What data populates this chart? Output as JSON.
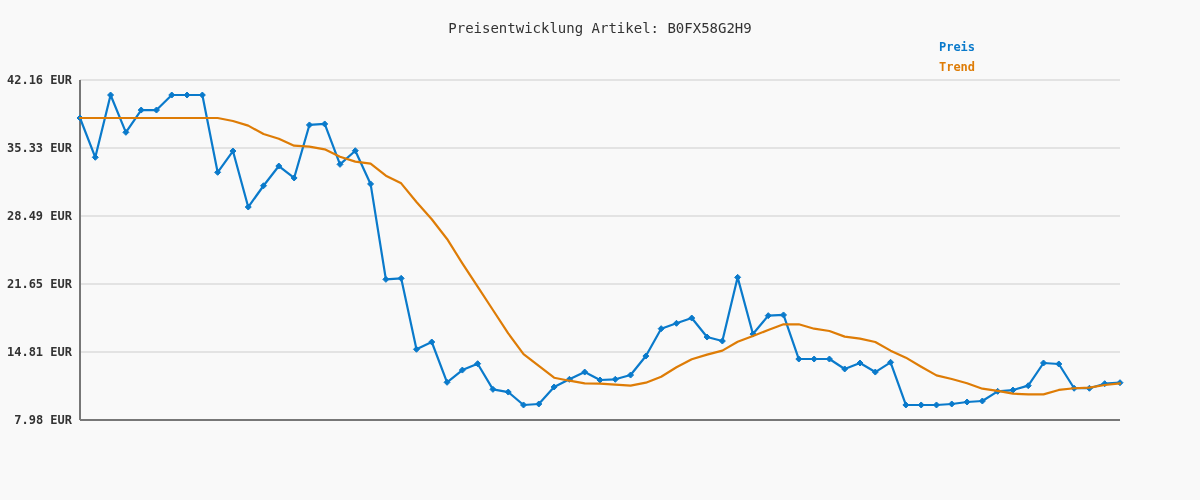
{
  "chart_data": {
    "type": "line",
    "title": "Preisentwicklung Artikel: B0FX58G2H9",
    "categories": [
      null,
      null,
      null,
      null,
      null,
      null,
      null,
      null,
      null,
      null,
      null,
      null,
      null,
      null,
      null,
      null,
      null,
      null,
      null,
      null,
      null,
      null,
      null,
      null,
      null,
      null,
      null,
      null,
      null,
      null,
      null,
      null,
      null,
      null,
      null,
      null,
      null,
      null,
      null,
      null,
      null,
      null,
      null,
      null,
      null,
      null,
      null,
      null,
      null,
      null,
      null,
      null,
      null,
      null,
      null,
      null,
      null,
      null,
      null,
      null,
      null,
      null,
      null,
      null,
      null,
      null,
      null,
      null,
      null
    ],
    "series": [
      {
        "name": "Preis",
        "color": "#0a7acb",
        "marker": "diamond",
        "values": [
          38.34,
          34.39,
          40.65,
          36.9,
          39.14,
          39.14,
          40.65,
          40.65,
          40.65,
          32.88,
          35.02,
          29.39,
          31.53,
          33.51,
          32.31,
          37.64,
          37.74,
          33.68,
          35.05,
          31.71,
          22.12,
          22.22,
          15.09,
          15.82,
          11.77,
          13.0,
          13.64,
          11.06,
          10.79,
          9.49,
          9.59,
          11.3,
          12.07,
          12.8,
          12.0,
          12.07,
          12.5,
          14.41,
          17.16,
          17.7,
          18.23,
          16.32,
          15.92,
          22.32,
          16.62,
          18.47,
          18.54,
          14.11,
          14.11,
          14.11,
          13.11,
          13.71,
          12.8,
          13.78,
          9.49,
          9.49,
          9.49,
          9.59,
          9.79,
          9.89,
          10.86,
          10.99,
          11.43,
          13.71,
          13.61,
          11.17,
          11.17,
          11.63,
          11.73
        ]
      },
      {
        "name": "Trend",
        "color": "#de7c06",
        "marker": "none",
        "values": [
          38.34,
          38.34,
          38.34,
          38.34,
          38.34,
          38.34,
          38.34,
          38.34,
          38.34,
          38.34,
          38.04,
          37.57,
          36.73,
          36.26,
          35.56,
          35.46,
          35.19,
          34.45,
          33.95,
          33.75,
          32.54,
          31.77,
          29.9,
          28.16,
          26.18,
          23.73,
          21.38,
          19.04,
          16.69,
          14.61,
          13.41,
          12.23,
          11.93,
          11.67,
          11.64,
          11.53,
          11.43,
          11.73,
          12.33,
          13.28,
          14.08,
          14.55,
          14.95,
          15.85,
          16.42,
          17.03,
          17.6,
          17.6,
          17.16,
          16.93,
          16.36,
          16.16,
          15.82,
          14.95,
          14.25,
          13.34,
          12.47,
          12.1,
          11.67,
          11.13,
          10.9,
          10.63,
          10.56,
          10.56,
          11.0,
          11.17,
          11.23,
          11.5,
          11.67
        ]
      }
    ],
    "ylim": [
      7.98,
      42.16
    ],
    "yticks": [
      {
        "value": 7.98,
        "label": "7.98 EUR"
      },
      {
        "value": 14.81,
        "label": "14.81 EUR"
      },
      {
        "value": 21.65,
        "label": "21.65 EUR"
      },
      {
        "value": 28.49,
        "label": "28.49 EUR"
      },
      {
        "value": 35.33,
        "label": "35.33 EUR"
      },
      {
        "value": 42.16,
        "label": "42.16 EUR"
      }
    ],
    "grid": "y",
    "legend": "top right"
  }
}
